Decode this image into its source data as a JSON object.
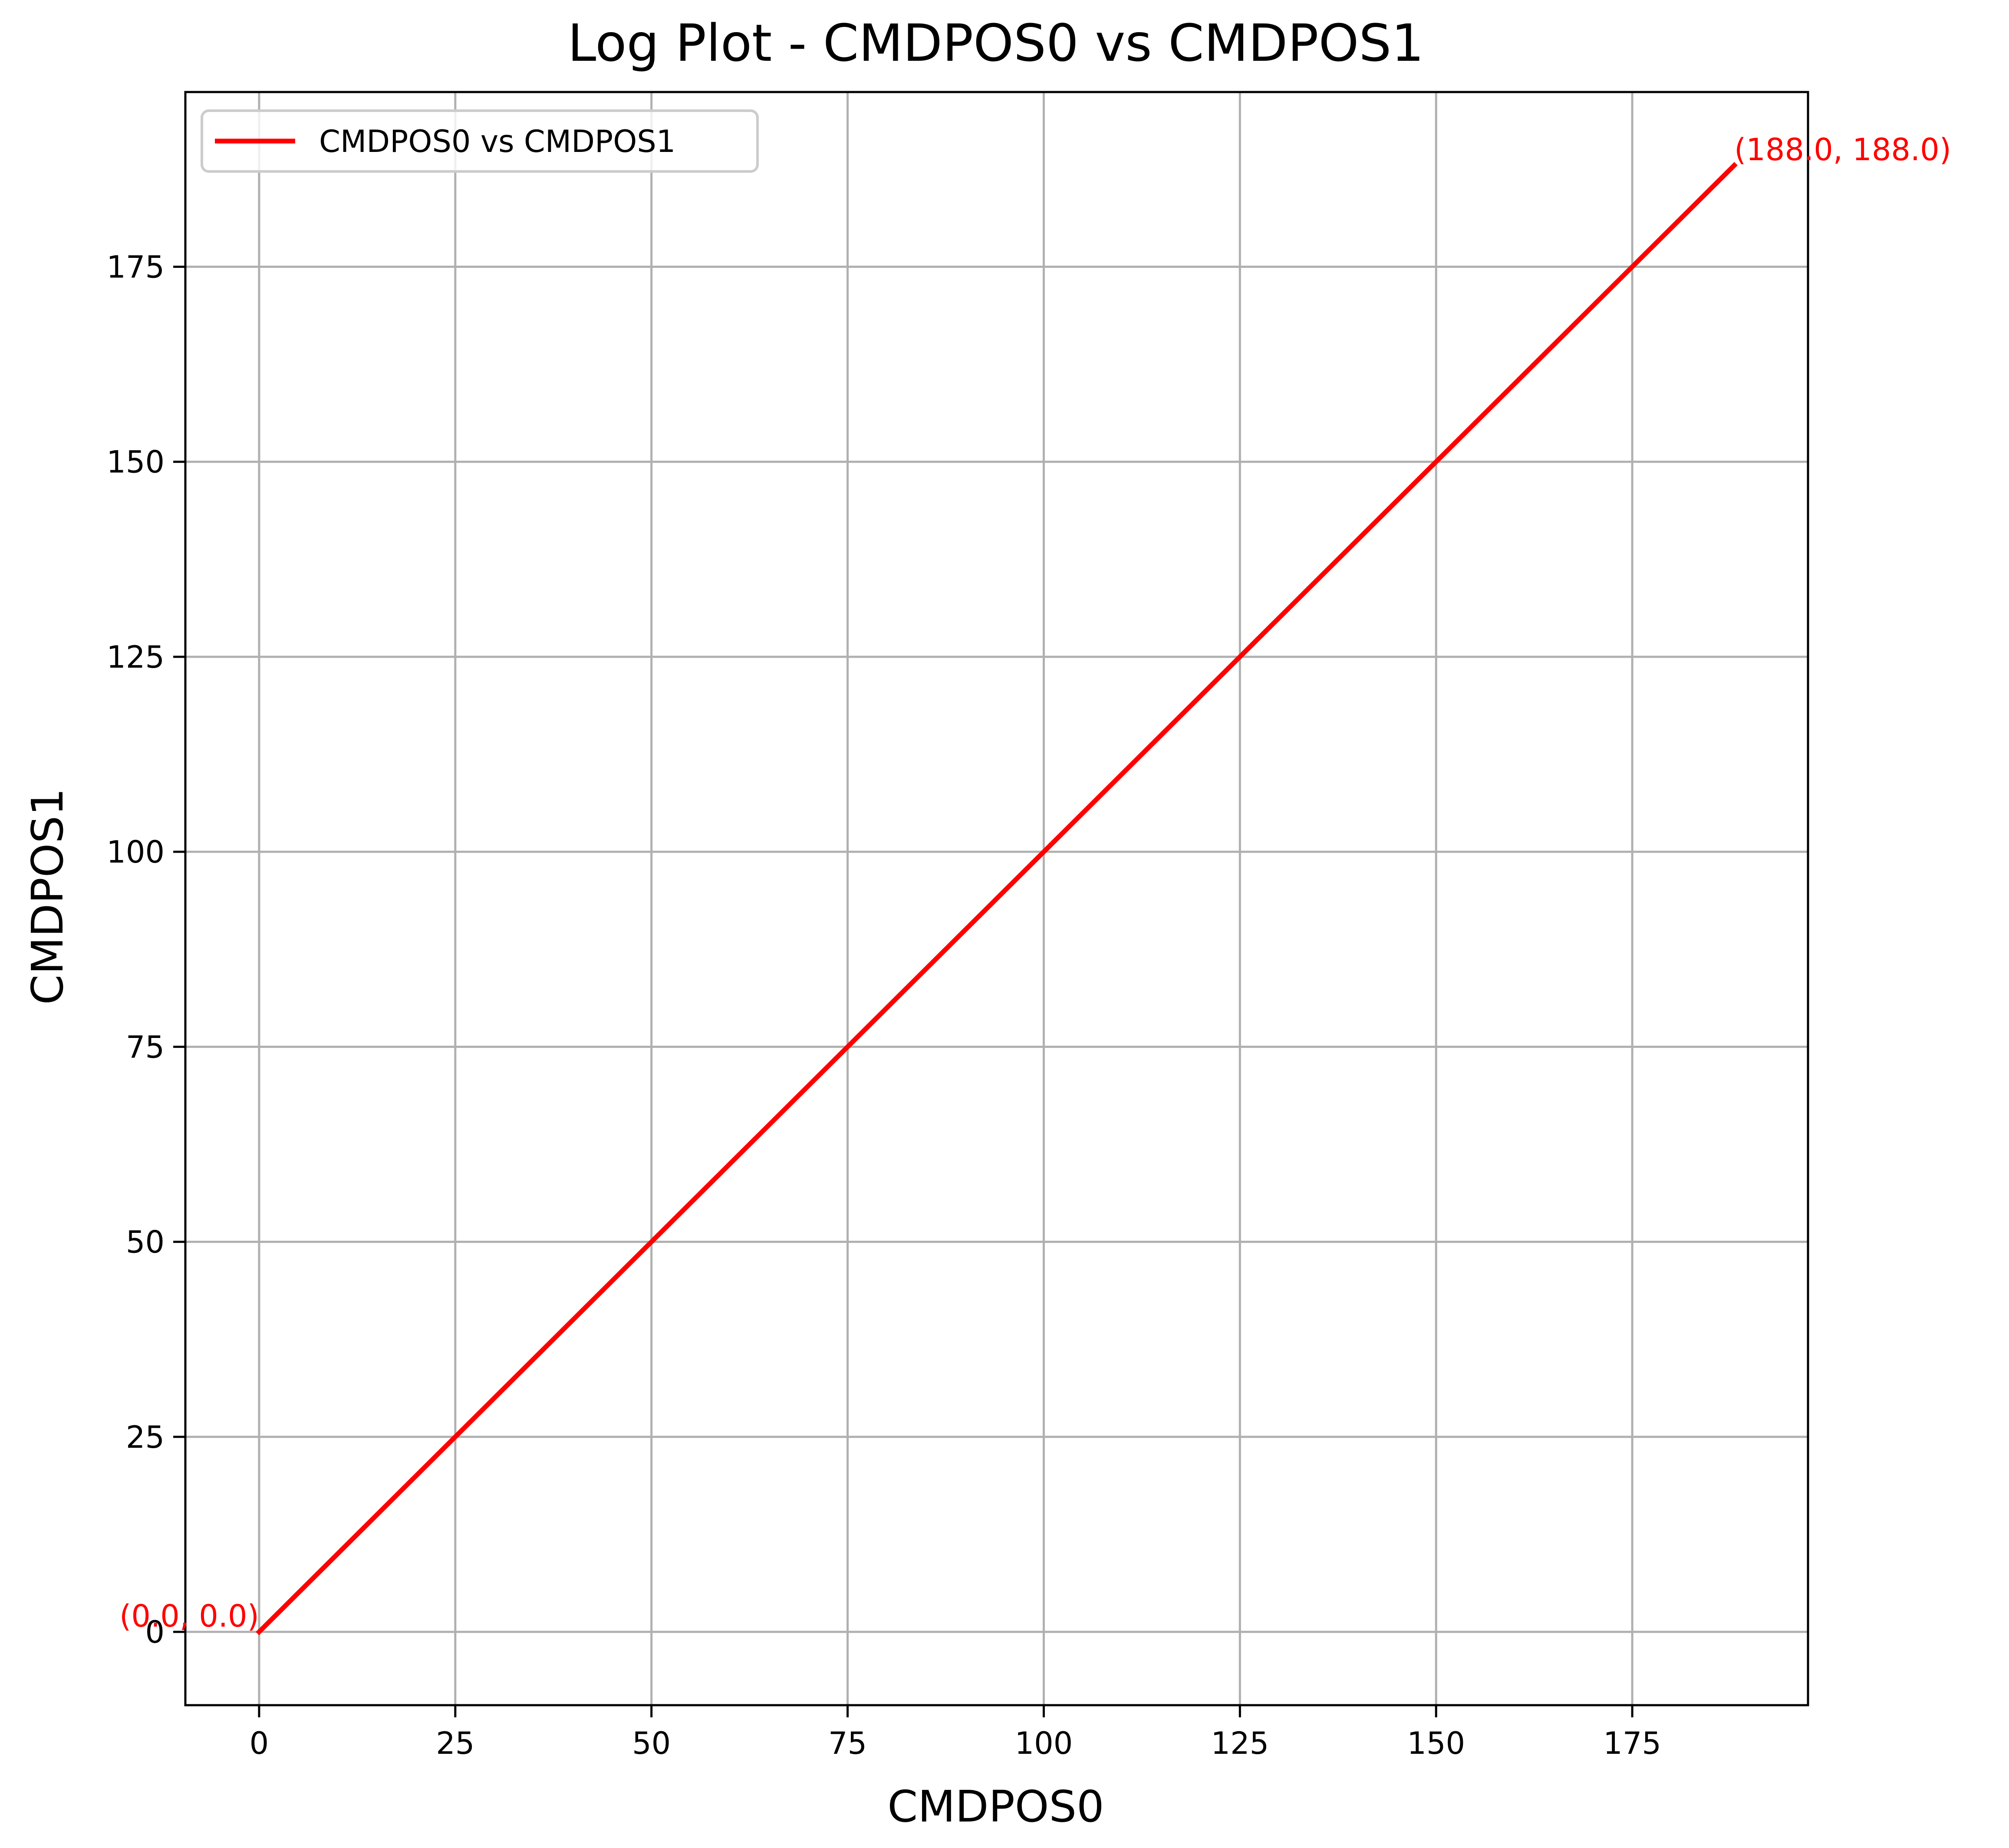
{
  "chart_data": {
    "type": "line",
    "title": "Log Plot - CMDPOS0 vs CMDPOS1",
    "xlabel": "CMDPOS0",
    "ylabel": "CMDPOS1",
    "xlim": [
      -9.4,
      197.4
    ],
    "ylim": [
      -9.4,
      197.4
    ],
    "xticks": [
      0,
      25,
      50,
      75,
      100,
      125,
      150,
      175
    ],
    "yticks": [
      0,
      25,
      50,
      75,
      100,
      125,
      150,
      175
    ],
    "grid": true,
    "legend_position": "upper-left",
    "series": [
      {
        "name": "CMDPOS0 vs CMDPOS1",
        "color": "#ff0000",
        "x": [
          0,
          188
        ],
        "y": [
          0,
          188
        ]
      }
    ],
    "annotations": [
      {
        "text": "(0.0, 0.0)",
        "x": 0,
        "y": 0,
        "anchor": "end",
        "color": "#ff0000"
      },
      {
        "text": "(188.0, 188.0)",
        "x": 188,
        "y": 188,
        "anchor": "start",
        "color": "#ff0000"
      }
    ]
  }
}
